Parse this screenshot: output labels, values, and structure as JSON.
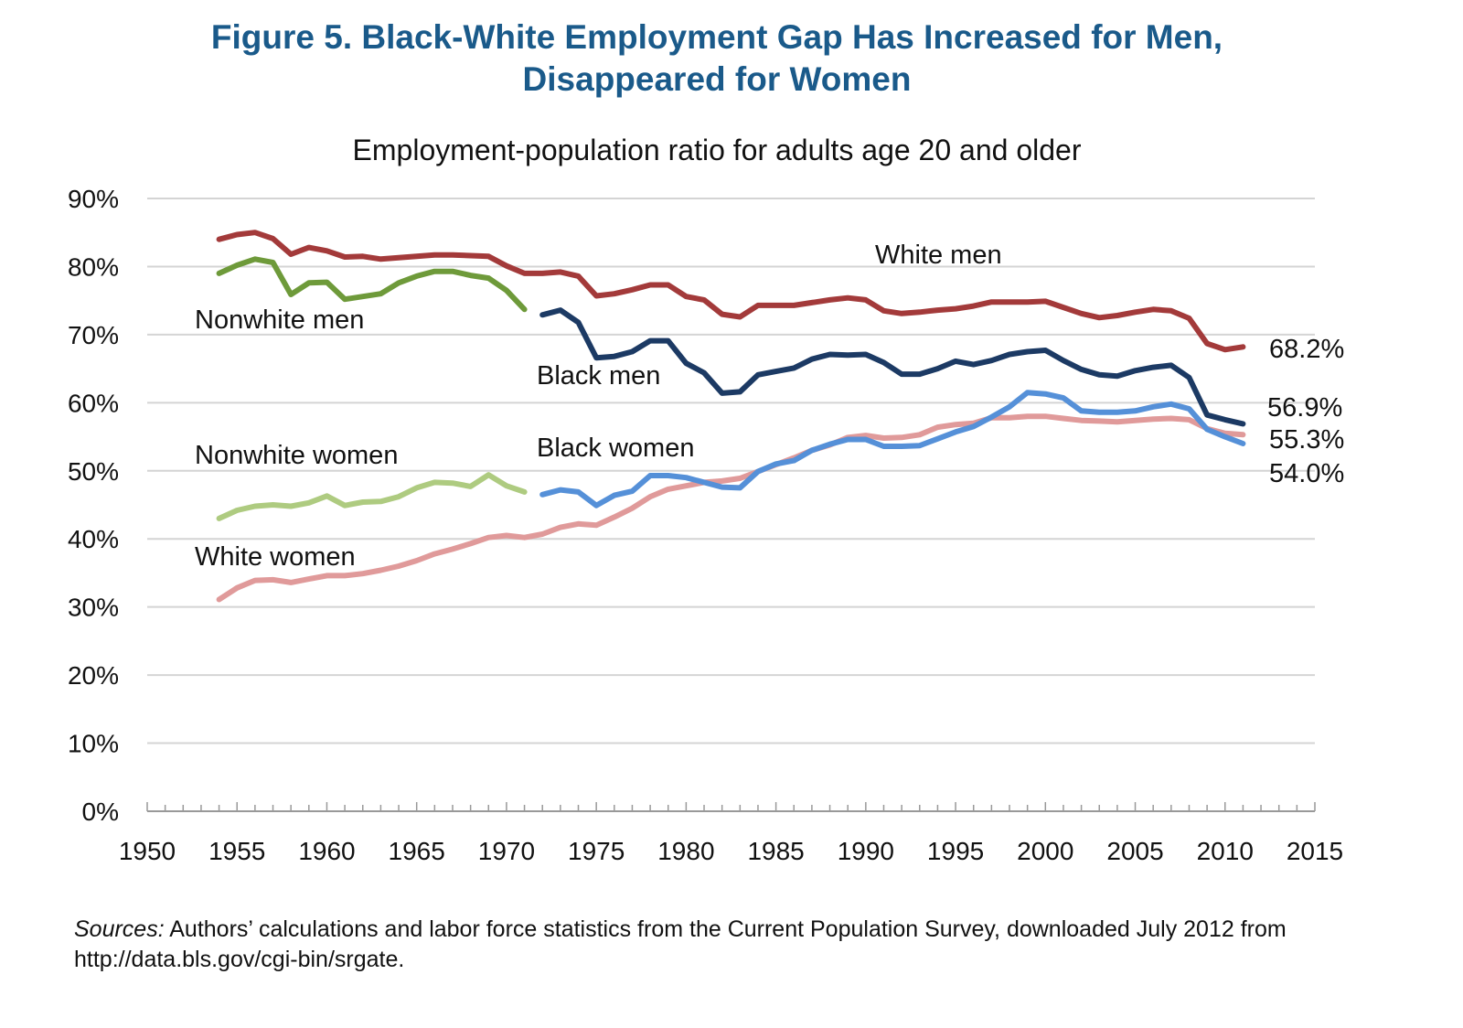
{
  "figure": {
    "title_line1": "Figure 5. Black-White Employment Gap Has Increased for Men,",
    "title_line2": "Disappeared for Women",
    "title_color": "#1a5a8a",
    "source_label": "Sources:",
    "source_text": " Authors’ calculations and labor force statistics from the Current Population Survey, downloaded July 2012 from http://data.bls.gov/cgi-bin/srgate."
  },
  "chart_data": {
    "type": "line",
    "title": "Employment-population ratio for adults age 20 and older",
    "xlabel": "",
    "ylabel": "",
    "xlim": [
      1950,
      2015
    ],
    "ylim": [
      0,
      90
    ],
    "grid": true,
    "legend": "inline labels",
    "x_ticks": [
      "1950",
      "1955",
      "1960",
      "1965",
      "1970",
      "1975",
      "1980",
      "1985",
      "1990",
      "1995",
      "2000",
      "2005",
      "2010",
      "2015"
    ],
    "y_ticks": [
      "0%",
      "10%",
      "20%",
      "30%",
      "40%",
      "50%",
      "60%",
      "70%",
      "80%",
      "90%"
    ],
    "y_tick_values": [
      0,
      10,
      20,
      30,
      40,
      50,
      60,
      70,
      80,
      90
    ],
    "series": [
      {
        "name": "White men",
        "color": "#a33a3a",
        "x": [
          1954,
          1955,
          1956,
          1957,
          1958,
          1959,
          1960,
          1961,
          1962,
          1963,
          1964,
          1965,
          1966,
          1967,
          1968,
          1969,
          1970,
          1971,
          1972,
          1973,
          1974,
          1975,
          1976,
          1977,
          1978,
          1979,
          1980,
          1981,
          1982,
          1983,
          1984,
          1985,
          1986,
          1987,
          1988,
          1989,
          1990,
          1991,
          1992,
          1993,
          1994,
          1995,
          1996,
          1997,
          1998,
          1999,
          2000,
          2001,
          2002,
          2003,
          2004,
          2005,
          2006,
          2007,
          2008,
          2009,
          2010,
          2011
        ],
        "values": [
          84.0,
          84.7,
          85.0,
          84.1,
          81.8,
          82.8,
          82.3,
          81.4,
          81.5,
          81.1,
          81.3,
          81.5,
          81.7,
          81.7,
          81.6,
          81.5,
          80.1,
          79.0,
          79.0,
          79.2,
          78.6,
          75.7,
          76.0,
          76.6,
          77.3,
          77.3,
          75.6,
          75.1,
          73.0,
          72.6,
          74.3,
          74.3,
          74.3,
          74.7,
          75.1,
          75.4,
          75.1,
          73.5,
          73.1,
          73.3,
          73.6,
          73.8,
          74.2,
          74.8,
          74.8,
          74.8,
          74.9,
          74.0,
          73.1,
          72.5,
          72.8,
          73.3,
          73.7,
          73.5,
          72.4,
          68.7,
          67.8,
          68.2
        ],
        "label": "White men",
        "end_label": ""
      },
      {
        "name": "Nonwhite men",
        "color": "#6e9a3a",
        "x": [
          1954,
          1955,
          1956,
          1957,
          1958,
          1959,
          1960,
          1961,
          1962,
          1963,
          1964,
          1965,
          1966,
          1967,
          1968,
          1969,
          1970,
          1971
        ],
        "values": [
          79.0,
          80.2,
          81.1,
          80.6,
          75.9,
          77.6,
          77.7,
          75.2,
          75.6,
          76.0,
          77.6,
          78.6,
          79.3,
          79.3,
          78.7,
          78.3,
          76.5,
          73.7
        ],
        "label": "Nonwhite men",
        "end_label": ""
      },
      {
        "name": "Black men",
        "color": "#1c3a64",
        "x": [
          1972,
          1973,
          1974,
          1975,
          1976,
          1977,
          1978,
          1979,
          1980,
          1981,
          1982,
          1983,
          1984,
          1985,
          1986,
          1987,
          1988,
          1989,
          1990,
          1991,
          1992,
          1993,
          1994,
          1995,
          1996,
          1997,
          1998,
          1999,
          2000,
          2001,
          2002,
          2003,
          2004,
          2005,
          2006,
          2007,
          2008,
          2009,
          2010,
          2011
        ],
        "values": [
          72.9,
          73.6,
          71.8,
          66.6,
          66.8,
          67.5,
          69.1,
          69.1,
          65.8,
          64.4,
          61.4,
          61.6,
          64.1,
          64.6,
          65.1,
          66.4,
          67.1,
          67.0,
          67.1,
          65.9,
          64.2,
          64.2,
          65.0,
          66.1,
          65.6,
          66.2,
          67.1,
          67.5,
          67.7,
          66.2,
          64.9,
          64.1,
          63.9,
          64.7,
          65.2,
          65.5,
          63.7,
          58.2,
          57.5,
          56.9
        ],
        "label": "Black men",
        "end_label": "56.9%"
      },
      {
        "name": "Nonwhite women",
        "color": "#aecb80",
        "x": [
          1954,
          1955,
          1956,
          1957,
          1958,
          1959,
          1960,
          1961,
          1962,
          1963,
          1964,
          1965,
          1966,
          1967,
          1968,
          1969,
          1970,
          1971
        ],
        "values": [
          43.0,
          44.2,
          44.8,
          45.0,
          44.8,
          45.3,
          46.3,
          44.9,
          45.4,
          45.5,
          46.2,
          47.5,
          48.3,
          48.2,
          47.7,
          49.4,
          47.8,
          46.9
        ],
        "label": "Nonwhite women",
        "end_label": ""
      },
      {
        "name": "White women",
        "color": "#e09a9a",
        "x": [
          1954,
          1955,
          1956,
          1957,
          1958,
          1959,
          1960,
          1961,
          1962,
          1963,
          1964,
          1965,
          1966,
          1967,
          1968,
          1969,
          1970,
          1971,
          1972,
          1973,
          1974,
          1975,
          1976,
          1977,
          1978,
          1979,
          1980,
          1981,
          1982,
          1983,
          1984,
          1985,
          1986,
          1987,
          1988,
          1989,
          1990,
          1991,
          1992,
          1993,
          1994,
          1995,
          1996,
          1997,
          1998,
          1999,
          2000,
          2001,
          2002,
          2003,
          2004,
          2005,
          2006,
          2007,
          2008,
          2009,
          2010,
          2011
        ],
        "values": [
          31.1,
          32.8,
          33.9,
          34.0,
          33.6,
          34.1,
          34.6,
          34.6,
          34.9,
          35.4,
          36.0,
          36.8,
          37.8,
          38.5,
          39.3,
          40.2,
          40.5,
          40.2,
          40.7,
          41.7,
          42.2,
          42.0,
          43.2,
          44.5,
          46.2,
          47.3,
          47.8,
          48.3,
          48.5,
          48.9,
          49.9,
          50.9,
          51.9,
          53.0,
          53.8,
          54.9,
          55.2,
          54.8,
          54.9,
          55.3,
          56.4,
          56.8,
          57.0,
          57.8,
          57.8,
          58.0,
          58.0,
          57.7,
          57.4,
          57.3,
          57.2,
          57.4,
          57.6,
          57.7,
          57.5,
          56.2,
          55.5,
          55.3
        ],
        "label": "White women",
        "end_label": "55.3%"
      },
      {
        "name": "Black women",
        "color": "#5590d8",
        "x": [
          1972,
          1973,
          1974,
          1975,
          1976,
          1977,
          1978,
          1979,
          1980,
          1981,
          1982,
          1983,
          1984,
          1985,
          1986,
          1987,
          1988,
          1989,
          1990,
          1991,
          1992,
          1993,
          1994,
          1995,
          1996,
          1997,
          1998,
          1999,
          2000,
          2001,
          2002,
          2003,
          2004,
          2005,
          2006,
          2007,
          2008,
          2009,
          2010,
          2011
        ],
        "values": [
          46.5,
          47.2,
          46.9,
          44.9,
          46.4,
          47.0,
          49.3,
          49.3,
          49.0,
          48.3,
          47.6,
          47.5,
          49.9,
          51.0,
          51.5,
          53.0,
          53.9,
          54.6,
          54.6,
          53.6,
          53.6,
          53.7,
          54.7,
          55.7,
          56.5,
          57.9,
          59.4,
          61.5,
          61.3,
          60.7,
          58.8,
          58.6,
          58.6,
          58.8,
          59.4,
          59.8,
          59.1,
          56.1,
          55.0,
          54.0
        ],
        "label": "Black women",
        "end_label": "54.0%"
      }
    ],
    "annotations": [
      {
        "text": "68.2%",
        "series": "White men"
      },
      {
        "text": "56.9%",
        "series": "Black men"
      },
      {
        "text": "55.3%",
        "series": "White women"
      },
      {
        "text": "54.0%",
        "series": "Black women"
      }
    ]
  }
}
